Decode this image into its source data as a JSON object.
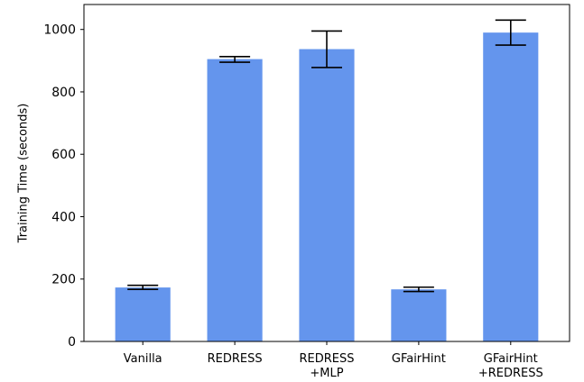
{
  "chart_data": {
    "type": "bar",
    "title": "",
    "xlabel": "",
    "ylabel": "Training Time (seconds)",
    "categories": [
      [
        "Vanilla"
      ],
      [
        "REDRESS"
      ],
      [
        "REDRESS",
        "+MLP"
      ],
      [
        "GFairHint"
      ],
      [
        "GFairHint",
        "+REDRESS"
      ]
    ],
    "values": [
      173,
      905,
      937,
      167,
      990
    ],
    "error_low": [
      167,
      895,
      878,
      160,
      950
    ],
    "error_high": [
      180,
      913,
      995,
      174,
      1030
    ],
    "ylim": [
      0,
      1080
    ],
    "yticks": [
      0,
      200,
      400,
      600,
      800,
      1000
    ],
    "grid": false,
    "bar_color": "#6495ed",
    "error_color": "#000000"
  }
}
